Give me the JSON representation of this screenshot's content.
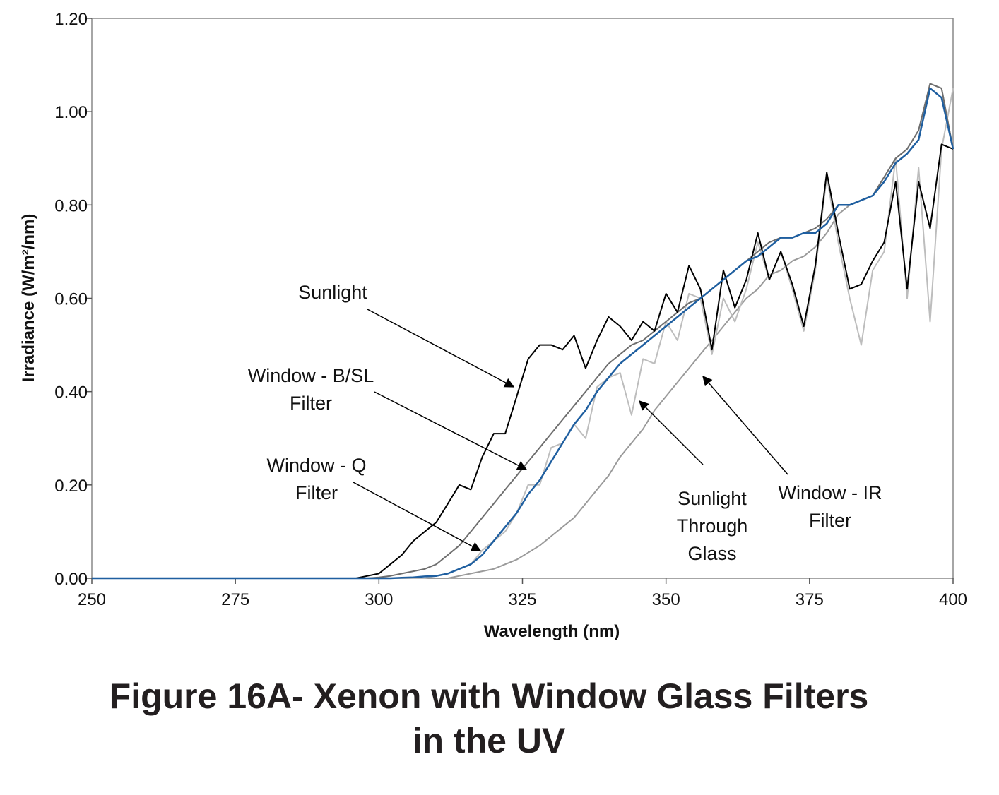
{
  "chart_data": {
    "type": "line",
    "title_lines": [
      "Figure 16A- Xenon with Window Glass Filters",
      "in the UV"
    ],
    "x_label": "Wavelength (nm)",
    "y_label": "Irradiance (W/m²/nm)",
    "x": [
      250,
      296,
      298,
      300,
      302,
      304,
      306,
      308,
      310,
      312,
      314,
      316,
      318,
      320,
      322,
      324,
      326,
      328,
      330,
      332,
      334,
      336,
      338,
      340,
      342,
      344,
      346,
      348,
      350,
      352,
      354,
      356,
      358,
      360,
      362,
      364,
      366,
      368,
      370,
      372,
      374,
      376,
      378,
      380,
      382,
      384,
      386,
      388,
      390,
      392,
      394,
      396,
      398,
      400
    ],
    "series": [
      {
        "color": "#000000",
        "values": [
          0,
          0,
          0.005,
          0.01,
          0.03,
          0.05,
          0.08,
          0.1,
          0.12,
          0.16,
          0.2,
          0.19,
          0.26,
          0.31,
          0.31,
          0.39,
          0.47,
          0.5,
          0.5,
          0.49,
          0.52,
          0.45,
          0.51,
          0.56,
          0.54,
          0.51,
          0.55,
          0.53,
          0.61,
          0.57,
          0.67,
          0.62,
          0.49,
          0.66,
          0.58,
          0.64,
          0.74,
          0.64,
          0.7,
          0.63,
          0.54,
          0.67,
          0.87,
          0.74,
          0.62,
          0.63,
          0.68,
          0.72,
          0.85,
          0.62,
          0.85,
          0.75,
          0.93,
          0.92
        ]
      },
      {
        "color": "#6e6e6e",
        "values": [
          0,
          0,
          0,
          0.002,
          0.005,
          0.01,
          0.015,
          0.02,
          0.03,
          0.05,
          0.07,
          0.1,
          0.13,
          0.16,
          0.19,
          0.22,
          0.25,
          0.28,
          0.31,
          0.34,
          0.37,
          0.4,
          0.43,
          0.46,
          0.48,
          0.5,
          0.51,
          0.53,
          0.55,
          0.57,
          0.59,
          0.6,
          0.62,
          0.64,
          0.66,
          0.68,
          0.7,
          0.72,
          0.73,
          0.73,
          0.74,
          0.75,
          0.77,
          0.8,
          0.8,
          0.81,
          0.82,
          0.86,
          0.9,
          0.92,
          0.96,
          1.06,
          1.05,
          0.92
        ]
      },
      {
        "color": "#bdbdbd",
        "values": [
          0,
          0,
          0,
          0,
          0,
          0,
          0,
          0,
          0.005,
          0.01,
          0.02,
          0.03,
          0.06,
          0.08,
          0.1,
          0.14,
          0.2,
          0.2,
          0.28,
          0.29,
          0.33,
          0.3,
          0.41,
          0.43,
          0.44,
          0.35,
          0.47,
          0.46,
          0.55,
          0.51,
          0.61,
          0.6,
          0.48,
          0.6,
          0.55,
          0.62,
          0.72,
          0.64,
          0.7,
          0.62,
          0.53,
          0.66,
          0.86,
          0.72,
          0.6,
          0.5,
          0.66,
          0.7,
          0.9,
          0.6,
          0.88,
          0.55,
          0.92,
          1.05
        ]
      },
      {
        "color": "#9a9a9a",
        "values": [
          0,
          0,
          0,
          0,
          0,
          0,
          0,
          0,
          0,
          0,
          0.005,
          0.01,
          0.015,
          0.02,
          0.03,
          0.04,
          0.055,
          0.07,
          0.09,
          0.11,
          0.13,
          0.16,
          0.19,
          0.22,
          0.26,
          0.29,
          0.32,
          0.36,
          0.39,
          0.42,
          0.45,
          0.48,
          0.51,
          0.54,
          0.57,
          0.6,
          0.62,
          0.65,
          0.66,
          0.68,
          0.69,
          0.71,
          0.74,
          0.78,
          0.8,
          0.81,
          0.82,
          0.86,
          0.9,
          0.92,
          0.96,
          1.06,
          1.05,
          0.92
        ]
      },
      {
        "color": "#1f5fa0",
        "values": [
          0,
          0,
          0,
          0,
          0,
          0.001,
          0.002,
          0.004,
          0.005,
          0.01,
          0.02,
          0.03,
          0.05,
          0.08,
          0.11,
          0.14,
          0.18,
          0.21,
          0.25,
          0.29,
          0.33,
          0.36,
          0.4,
          0.43,
          0.46,
          0.48,
          0.5,
          0.52,
          0.54,
          0.56,
          0.58,
          0.6,
          0.62,
          0.64,
          0.66,
          0.68,
          0.69,
          0.71,
          0.73,
          0.73,
          0.74,
          0.74,
          0.76,
          0.8,
          0.8,
          0.81,
          0.82,
          0.85,
          0.89,
          0.91,
          0.94,
          1.05,
          1.03,
          0.92
        ]
      }
    ],
    "annotations": [
      {
        "lines": [
          "Sunlight"
        ]
      },
      {
        "lines": [
          "Window - B/SL",
          "Filter"
        ]
      },
      {
        "lines": [
          "Window - Q",
          "Filter"
        ]
      },
      {
        "lines": [
          "Sunlight",
          "Through",
          "Glass"
        ]
      },
      {
        "lines": [
          "Window - IR",
          "Filter"
        ]
      }
    ],
    "xlim": [
      250,
      400
    ],
    "xticks": [
      250,
      275,
      300,
      325,
      350,
      375,
      400
    ],
    "ylim": [
      0,
      1.2
    ],
    "yticks": [
      {
        "value": 0,
        "label": "0.00"
      },
      {
        "value": 0.2,
        "label": "0.20"
      },
      {
        "value": 0.4,
        "label": "0.40"
      },
      {
        "value": 0.6,
        "label": "0.60"
      },
      {
        "value": 0.8,
        "label": "0.80"
      },
      {
        "value": 1.0,
        "label": "1.00"
      },
      {
        "value": 1.2,
        "label": "1.20"
      }
    ]
  }
}
